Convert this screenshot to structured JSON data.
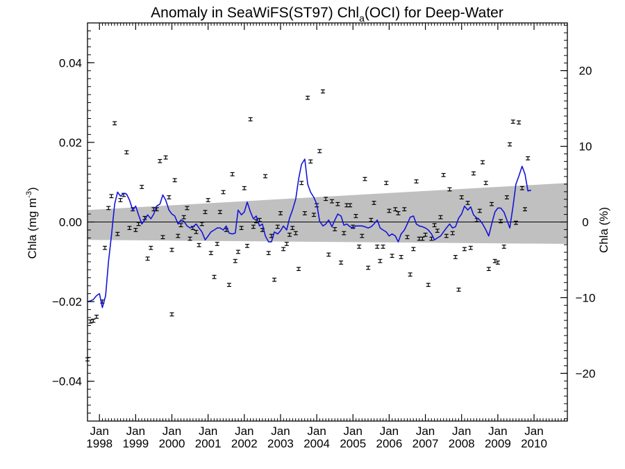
{
  "chart_data": {
    "type": "line",
    "title": {
      "prefix": "Anomaly in SeaWiFS(ST97) Chl",
      "subscript": "a",
      "suffix": "(OCI) for Deep-Water"
    },
    "ylabel_left": {
      "prefix": "Chla (mg m",
      "superscript": "-3",
      "suffix": ")"
    },
    "ylabel_right": "Chla (%)",
    "xlim": [
      1997.67,
      2010.92
    ],
    "ylim": [
      -0.05,
      0.05
    ],
    "ylim_right": [
      -26.3,
      26.3
    ],
    "yticks_left": [
      {
        "v": -0.04,
        "label": "−0.04"
      },
      {
        "v": -0.02,
        "label": "−0.02"
      },
      {
        "v": 0.0,
        "label": "0.00"
      },
      {
        "v": 0.02,
        "label": "0.02"
      },
      {
        "v": 0.04,
        "label": "0.04"
      }
    ],
    "yticks_right": [
      {
        "v": -20,
        "label": "−20"
      },
      {
        "v": -10,
        "label": "−10"
      },
      {
        "v": 0,
        "label": "0"
      },
      {
        "v": 10,
        "label": "10"
      },
      {
        "v": 20,
        "label": "20"
      }
    ],
    "xticks": [
      {
        "x": 1998.0,
        "month": "Jan",
        "year": "1998"
      },
      {
        "x": 1999.0,
        "month": "Jan",
        "year": "1999"
      },
      {
        "x": 2000.0,
        "month": "Jan",
        "year": "2000"
      },
      {
        "x": 2001.0,
        "month": "Jan",
        "year": "2001"
      },
      {
        "x": 2002.0,
        "month": "Jan",
        "year": "2002"
      },
      {
        "x": 2003.0,
        "month": "Jan",
        "year": "2003"
      },
      {
        "x": 2004.0,
        "month": "Jan",
        "year": "2004"
      },
      {
        "x": 2005.0,
        "month": "Jan",
        "year": "2005"
      },
      {
        "x": 2006.0,
        "month": "Jan",
        "year": "2006"
      },
      {
        "x": 2007.0,
        "month": "Jan",
        "year": "2007"
      },
      {
        "x": 2008.0,
        "month": "Jan",
        "year": "2008"
      },
      {
        "x": 2009.0,
        "month": "Jan",
        "year": "2009"
      },
      {
        "x": 2010.0,
        "month": "Jan",
        "year": "2010"
      }
    ],
    "trend_band": {
      "x": [
        1997.67,
        2010.92
      ],
      "upper": [
        0.003,
        0.0098
      ],
      "lower": [
        -0.0045,
        -0.0055
      ]
    },
    "zero_line": 0.0,
    "error_half_width": 0.0004,
    "points": [
      [
        1997.67,
        -0.0345
      ],
      [
        1997.75,
        -0.025
      ],
      [
        1997.83,
        -0.0248
      ],
      [
        1997.92,
        -0.0238
      ],
      [
        2000.0,
        -0.0232
      ],
      [
        1998.08,
        -0.02
      ],
      [
        1998.15,
        -0.0065
      ],
      [
        1998.25,
        0.0035
      ],
      [
        1998.33,
        0.0065
      ],
      [
        1998.42,
        0.0248
      ],
      [
        1998.5,
        -0.003
      ],
      [
        1998.58,
        0.0055
      ],
      [
        1998.67,
        0.0068
      ],
      [
        1998.75,
        0.0175
      ],
      [
        1998.83,
        -0.0015
      ],
      [
        1998.92,
        0.0032
      ],
      [
        1999.0,
        -0.002
      ],
      [
        1999.08,
        -0.0005
      ],
      [
        1999.17,
        0.0088
      ],
      [
        1999.25,
        0.001
      ],
      [
        1999.33,
        -0.0092
      ],
      [
        1999.42,
        -0.0065
      ],
      [
        1999.5,
        0.0032
      ],
      [
        1999.58,
        0.0032
      ],
      [
        1999.67,
        0.0153
      ],
      [
        1999.75,
        -0.0038
      ],
      [
        1999.83,
        0.0162
      ],
      [
        1999.92,
        0.0062
      ],
      [
        2000.0,
        -0.007
      ],
      [
        2000.08,
        0.0105
      ],
      [
        2000.17,
        -0.0035
      ],
      [
        2000.25,
        -0.0008
      ],
      [
        2000.33,
        0.0012
      ],
      [
        2000.42,
        0.0035
      ],
      [
        2000.5,
        -0.0042
      ],
      [
        2000.58,
        -0.0015
      ],
      [
        2000.67,
        -0.0025
      ],
      [
        2000.75,
        -0.0058
      ],
      [
        2000.83,
        -0.0005
      ],
      [
        2000.92,
        0.0025
      ],
      [
        2001.0,
        0.0055
      ],
      [
        2001.08,
        -0.0078
      ],
      [
        2001.17,
        -0.0138
      ],
      [
        2001.25,
        -0.0055
      ],
      [
        2001.33,
        0.0025
      ],
      [
        2001.42,
        0.0075
      ],
      [
        2001.5,
        -0.002
      ],
      [
        2001.58,
        -0.0158
      ],
      [
        2001.67,
        0.012
      ],
      [
        2001.75,
        -0.0098
      ],
      [
        2001.83,
        -0.0075
      ],
      [
        2001.92,
        -0.0015
      ],
      [
        2002.0,
        0.0085
      ],
      [
        2002.08,
        -0.006
      ],
      [
        2002.17,
        0.0258
      ],
      [
        2002.25,
        -0.0012
      ],
      [
        2002.33,
        0.0002
      ],
      [
        2002.42,
        0.0005
      ],
      [
        2002.5,
        -0.002
      ],
      [
        2002.58,
        0.0115
      ],
      [
        2002.67,
        -0.0078
      ],
      [
        2002.75,
        -0.0035
      ],
      [
        2002.83,
        -0.0145
      ],
      [
        2002.92,
        -0.0012
      ],
      [
        2003.0,
        0.0022
      ],
      [
        2003.08,
        -0.0068
      ],
      [
        2003.17,
        -0.0055
      ],
      [
        2003.25,
        -0.0032
      ],
      [
        2003.33,
        -0.0015
      ],
      [
        2003.42,
        -0.0028
      ],
      [
        2003.5,
        -0.0118
      ],
      [
        2003.58,
        0.0098
      ],
      [
        2003.67,
        0.0022
      ],
      [
        2003.75,
        0.0312
      ],
      [
        2003.83,
        0.0152
      ],
      [
        2003.92,
        0.0018
      ],
      [
        2004.0,
        0.0042
      ],
      [
        2004.08,
        0.0178
      ],
      [
        2004.17,
        0.0328
      ],
      [
        2004.25,
        0.0058
      ],
      [
        2004.33,
        -0.0082
      ],
      [
        2004.42,
        0.0052
      ],
      [
        2004.5,
        -0.0018
      ],
      [
        2004.58,
        0.0045
      ],
      [
        2004.67,
        -0.0102
      ],
      [
        2004.75,
        -0.0028
      ],
      [
        2004.83,
        0.0042
      ],
      [
        2004.92,
        0.0042
      ],
      [
        2005.0,
        -0.0012
      ],
      [
        2005.08,
        0.0015
      ],
      [
        2005.17,
        -0.0062
      ],
      [
        2005.25,
        -0.0035
      ],
      [
        2005.33,
        0.0108
      ],
      [
        2005.42,
        -0.0115
      ],
      [
        2005.5,
        0.0005
      ],
      [
        2005.58,
        0.0048
      ],
      [
        2005.67,
        -0.0062
      ],
      [
        2005.75,
        -0.0098
      ],
      [
        2005.83,
        -0.0062
      ],
      [
        2005.92,
        0.0098
      ],
      [
        2006.0,
        0.0028
      ],
      [
        2006.08,
        -0.0085
      ],
      [
        2006.17,
        0.0032
      ],
      [
        2006.25,
        0.0022
      ],
      [
        2006.33,
        -0.0088
      ],
      [
        2006.42,
        0.0032
      ],
      [
        2006.5,
        -0.0038
      ],
      [
        2006.58,
        -0.0132
      ],
      [
        2006.67,
        -0.0068
      ],
      [
        2006.75,
        0.0102
      ],
      [
        2006.83,
        -0.0042
      ],
      [
        2006.92,
        -0.0042
      ],
      [
        2007.0,
        -0.0032
      ],
      [
        2007.08,
        -0.0158
      ],
      [
        2007.17,
        -0.0042
      ],
      [
        2007.25,
        -0.0008
      ],
      [
        2007.33,
        -0.0022
      ],
      [
        2007.42,
        0.0012
      ],
      [
        2007.5,
        0.0118
      ],
      [
        2007.58,
        -0.0035
      ],
      [
        2007.67,
        0.0082
      ],
      [
        2007.75,
        -0.0028
      ],
      [
        2007.83,
        -0.0088
      ],
      [
        2007.92,
        -0.017
      ],
      [
        2008.0,
        0.0062
      ],
      [
        2008.08,
        -0.0068
      ],
      [
        2008.17,
        0.0048
      ],
      [
        2008.25,
        -0.0065
      ],
      [
        2008.33,
        0.0122
      ],
      [
        2008.42,
        0.0005
      ],
      [
        2008.5,
        0.0028
      ],
      [
        2008.58,
        0.015
      ],
      [
        2008.67,
        0.0098
      ],
      [
        2008.75,
        -0.0118
      ],
      [
        2008.83,
        0.0045
      ],
      [
        2008.92,
        -0.0098
      ],
      [
        2009.0,
        -0.0102
      ],
      [
        2009.08,
        0.0002
      ],
      [
        2009.17,
        -0.0062
      ],
      [
        2009.25,
        0.0062
      ],
      [
        2009.33,
        0.0195
      ],
      [
        2009.42,
        0.0252
      ],
      [
        2009.5,
        -0.0002
      ],
      [
        2009.58,
        0.025
      ],
      [
        2009.67,
        0.0085
      ],
      [
        2009.75,
        0.0032
      ],
      [
        2009.83,
        0.016
      ]
    ],
    "line": [
      [
        1997.67,
        -0.02
      ],
      [
        1997.75,
        -0.0198
      ],
      [
        1997.83,
        -0.0195
      ],
      [
        1997.92,
        -0.0185
      ],
      [
        1998.0,
        -0.018
      ],
      [
        1998.08,
        -0.0215
      ],
      [
        1998.17,
        -0.0185
      ],
      [
        1998.25,
        -0.01
      ],
      [
        1998.33,
        -0.0035
      ],
      [
        1998.42,
        0.0045
      ],
      [
        1998.5,
        0.0075
      ],
      [
        1998.58,
        0.0065
      ],
      [
        1998.67,
        0.0072
      ],
      [
        1998.75,
        0.007
      ],
      [
        1998.83,
        0.0055
      ],
      [
        1998.92,
        0.003
      ],
      [
        1999.0,
        0.004
      ],
      [
        1999.08,
        0.0018
      ],
      [
        1999.17,
        -0.0005
      ],
      [
        1999.25,
        0.0005
      ],
      [
        1999.33,
        0.0018
      ],
      [
        1999.42,
        0.0008
      ],
      [
        1999.5,
        0.002
      ],
      [
        1999.58,
        0.004
      ],
      [
        1999.67,
        0.0045
      ],
      [
        1999.75,
        0.0068
      ],
      [
        1999.83,
        0.0055
      ],
      [
        1999.92,
        0.003
      ],
      [
        2000.0,
        0.002
      ],
      [
        2000.08,
        0.0015
      ],
      [
        2000.17,
        -0.0005
      ],
      [
        2000.25,
        0.0005
      ],
      [
        2000.33,
        0.0002
      ],
      [
        2000.42,
        -0.001
      ],
      [
        2000.5,
        -0.0015
      ],
      [
        2000.58,
        -0.0012
      ],
      [
        2000.67,
        -0.0005
      ],
      [
        2000.75,
        -0.0015
      ],
      [
        2000.83,
        -0.0025
      ],
      [
        2000.92,
        -0.0045
      ],
      [
        2001.0,
        -0.0035
      ],
      [
        2001.08,
        -0.0025
      ],
      [
        2001.17,
        -0.002
      ],
      [
        2001.25,
        -0.0015
      ],
      [
        2001.33,
        -0.0015
      ],
      [
        2001.42,
        -0.002
      ],
      [
        2001.5,
        -0.001
      ],
      [
        2001.58,
        -0.0028
      ],
      [
        2001.67,
        -0.003
      ],
      [
        2001.75,
        -0.0028
      ],
      [
        2001.83,
        0.003
      ],
      [
        2001.92,
        0.0018
      ],
      [
        2002.0,
        0.0025
      ],
      [
        2002.08,
        0.005
      ],
      [
        2002.17,
        0.0025
      ],
      [
        2002.25,
        0.0008
      ],
      [
        2002.33,
        0.0015
      ],
      [
        2002.42,
        -0.001
      ],
      [
        2002.5,
        -0.0005
      ],
      [
        2002.58,
        -0.0035
      ],
      [
        2002.67,
        -0.005
      ],
      [
        2002.75,
        -0.005
      ],
      [
        2002.83,
        -0.0025
      ],
      [
        2002.92,
        -0.003
      ],
      [
        2003.0,
        -0.0022
      ],
      [
        2003.08,
        -0.001
      ],
      [
        2003.17,
        -0.002
      ],
      [
        2003.25,
        0.001
      ],
      [
        2003.33,
        0.003
      ],
      [
        2003.42,
        0.0058
      ],
      [
        2003.5,
        0.0108
      ],
      [
        2003.58,
        0.0145
      ],
      [
        2003.67,
        0.0158
      ],
      [
        2003.75,
        0.0095
      ],
      [
        2003.83,
        0.0075
      ],
      [
        2003.92,
        0.0062
      ],
      [
        2004.0,
        0.0045
      ],
      [
        2004.08,
        0.0002
      ],
      [
        2004.17,
        -0.001
      ],
      [
        2004.25,
        -0.0005
      ],
      [
        2004.33,
        0.0005
      ],
      [
        2004.42,
        -0.0012
      ],
      [
        2004.5,
        0.0005
      ],
      [
        2004.58,
        0.002
      ],
      [
        2004.67,
        0.0015
      ],
      [
        2004.75,
        -0.0008
      ],
      [
        2004.83,
        -0.0005
      ],
      [
        2004.92,
        -0.0012
      ],
      [
        2005.0,
        -0.0015
      ],
      [
        2005.08,
        -0.001
      ],
      [
        2005.17,
        -0.001
      ],
      [
        2005.25,
        -0.001
      ],
      [
        2005.33,
        -0.0012
      ],
      [
        2005.42,
        -0.0015
      ],
      [
        2005.5,
        -0.0012
      ],
      [
        2005.58,
        -0.0005
      ],
      [
        2005.67,
        0.0005
      ],
      [
        2005.75,
        -0.0015
      ],
      [
        2005.83,
        -0.002
      ],
      [
        2005.92,
        -0.0025
      ],
      [
        2006.0,
        -0.0035
      ],
      [
        2006.08,
        -0.003
      ],
      [
        2006.17,
        -0.0035
      ],
      [
        2006.25,
        -0.005
      ],
      [
        2006.33,
        -0.003
      ],
      [
        2006.42,
        -0.002
      ],
      [
        2006.5,
        -0.0005
      ],
      [
        2006.58,
        0.0012
      ],
      [
        2006.67,
        0.0015
      ],
      [
        2006.75,
        -0.0005
      ],
      [
        2006.83,
        -0.001
      ],
      [
        2006.92,
        -0.0012
      ],
      [
        2007.0,
        -0.0015
      ],
      [
        2007.08,
        -0.002
      ],
      [
        2007.17,
        -0.003
      ],
      [
        2007.25,
        -0.0045
      ],
      [
        2007.33,
        -0.004
      ],
      [
        2007.42,
        -0.0035
      ],
      [
        2007.5,
        -0.0025
      ],
      [
        2007.58,
        -0.0015
      ],
      [
        2007.67,
        -0.0005
      ],
      [
        2007.75,
        -0.0015
      ],
      [
        2007.83,
        -0.0012
      ],
      [
        2007.92,
        0.001
      ],
      [
        2008.0,
        0.002
      ],
      [
        2008.08,
        0.004
      ],
      [
        2008.17,
        0.003
      ],
      [
        2008.25,
        0.0038
      ],
      [
        2008.33,
        0.0018
      ],
      [
        2008.42,
        0.001
      ],
      [
        2008.5,
        0.0005
      ],
      [
        2008.58,
        -0.0005
      ],
      [
        2008.67,
        -0.002
      ],
      [
        2008.75,
        -0.0035
      ],
      [
        2008.83,
        -0.0005
      ],
      [
        2008.92,
        0.0025
      ],
      [
        2009.0,
        0.0035
      ],
      [
        2009.08,
        0.0035
      ],
      [
        2009.17,
        0.0025
      ],
      [
        2009.25,
        0.0005
      ],
      [
        2009.33,
        -0.0015
      ],
      [
        2009.42,
        0.004
      ],
      [
        2009.5,
        0.0095
      ],
      [
        2009.58,
        0.0115
      ],
      [
        2009.67,
        0.014
      ],
      [
        2009.75,
        0.012
      ],
      [
        2009.83,
        0.0078
      ],
      [
        2009.92,
        0.008
      ]
    ],
    "colors": {
      "line": "#1414d8",
      "band": "#c0c0c0",
      "points": "#000000",
      "axes": "#000000"
    },
    "grid": false,
    "legend": "none"
  }
}
